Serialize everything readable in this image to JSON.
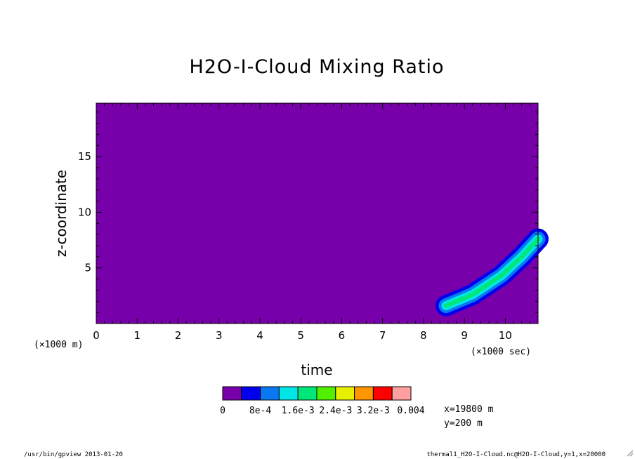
{
  "chart_data": {
    "type": "heatmap",
    "title": "H2O-I-Cloud Mixing Ratio",
    "xlabel": "time",
    "ylabel": "z-coordinate",
    "x_unit_label": "(×1000 sec)",
    "y_unit_label": "(×1000 m)",
    "xlim": [
      0,
      10.8
    ],
    "ylim": [
      0,
      19.8
    ],
    "x_ticks": [
      "0",
      "1",
      "2",
      "3",
      "4",
      "5",
      "6",
      "7",
      "8",
      "9",
      "10"
    ],
    "y_ticks": [
      "5",
      "10",
      "15"
    ],
    "y_tick_values": [
      5,
      10,
      15
    ],
    "levels": [
      "0",
      "8e-4",
      "1.6e-3",
      "2.4e-3",
      "3.2e-3",
      "0.004"
    ],
    "level_colors": [
      "#7800aa",
      "#0000ee",
      "#0a78f0",
      "#00e6e6",
      "#00e678",
      "#50f000",
      "#e6f000",
      "#ff9600",
      "#ff0000",
      "#ffa0a0"
    ],
    "background_color": "#7800aa",
    "plume_band_colors": [
      "#0000ee",
      "#0a78f0",
      "#00e6e6",
      "#00e678"
    ],
    "plume_path": [
      {
        "t": 8.55,
        "z": 1.6
      },
      {
        "t": 9.2,
        "z": 2.6
      },
      {
        "t": 9.9,
        "z": 4.3
      },
      {
        "t": 10.4,
        "z": 6.0
      },
      {
        "t": 10.8,
        "z": 7.6
      }
    ],
    "info_lines": [
      "x=19800 m",
      "y=200 m"
    ],
    "grid": false
  },
  "footer": {
    "left": "/usr/bin/gpview  2013-01-20",
    "right": "thermal1_H2O-I-Cloud.nc@H2O-I-Cloud,y=1,x=20000"
  },
  "legend_labels": [
    "0",
    "8e-4",
    "1.6e-3",
    "2.4e-3",
    "3.2e-3",
    "0.004"
  ]
}
